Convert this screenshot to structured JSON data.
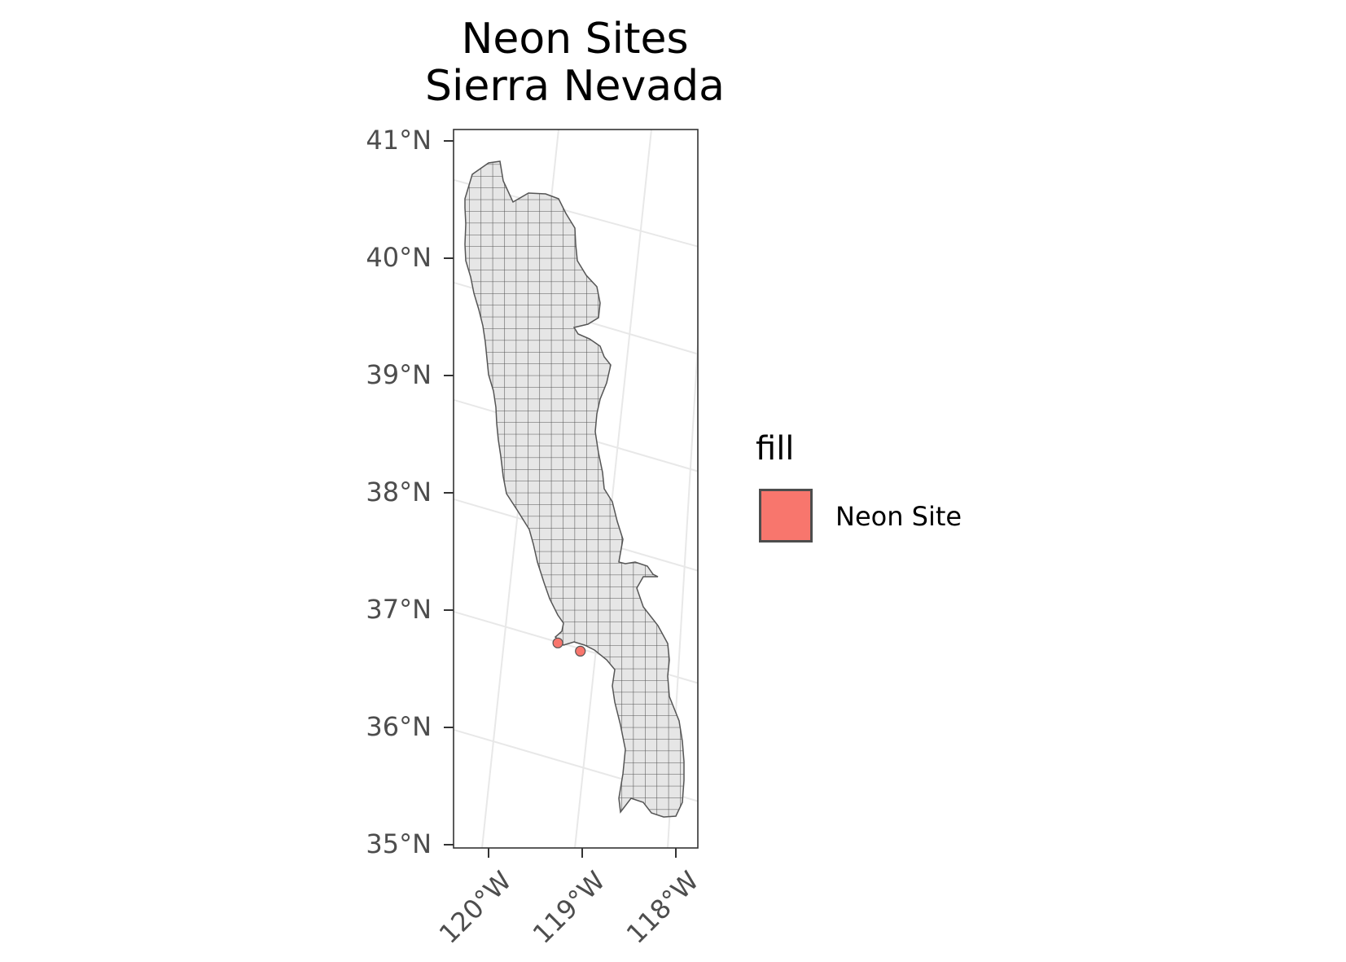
{
  "chart_data": {
    "type": "map",
    "title": [
      "Neon Sites",
      "Sierra Nevada"
    ],
    "x_ticks": [
      "120°W",
      "119°W",
      "118°W"
    ],
    "y_ticks": [
      "41°N",
      "40°N",
      "39°N",
      "38°N",
      "37°N",
      "36°N",
      "35°N"
    ],
    "region": "Sierra Nevada",
    "region_fill": "#e6e6e6",
    "region_stroke": "#555555",
    "grid_overlay": true,
    "points": [
      {
        "lon": -119.26,
        "lat": 36.72,
        "category": "Neon Site"
      },
      {
        "lon": -119.02,
        "lat": 36.65,
        "category": "Neon Site"
      }
    ],
    "legend": {
      "title": "fill",
      "position": "right",
      "items": [
        {
          "label": "Neon Site",
          "color": "#F8766D"
        }
      ]
    }
  }
}
